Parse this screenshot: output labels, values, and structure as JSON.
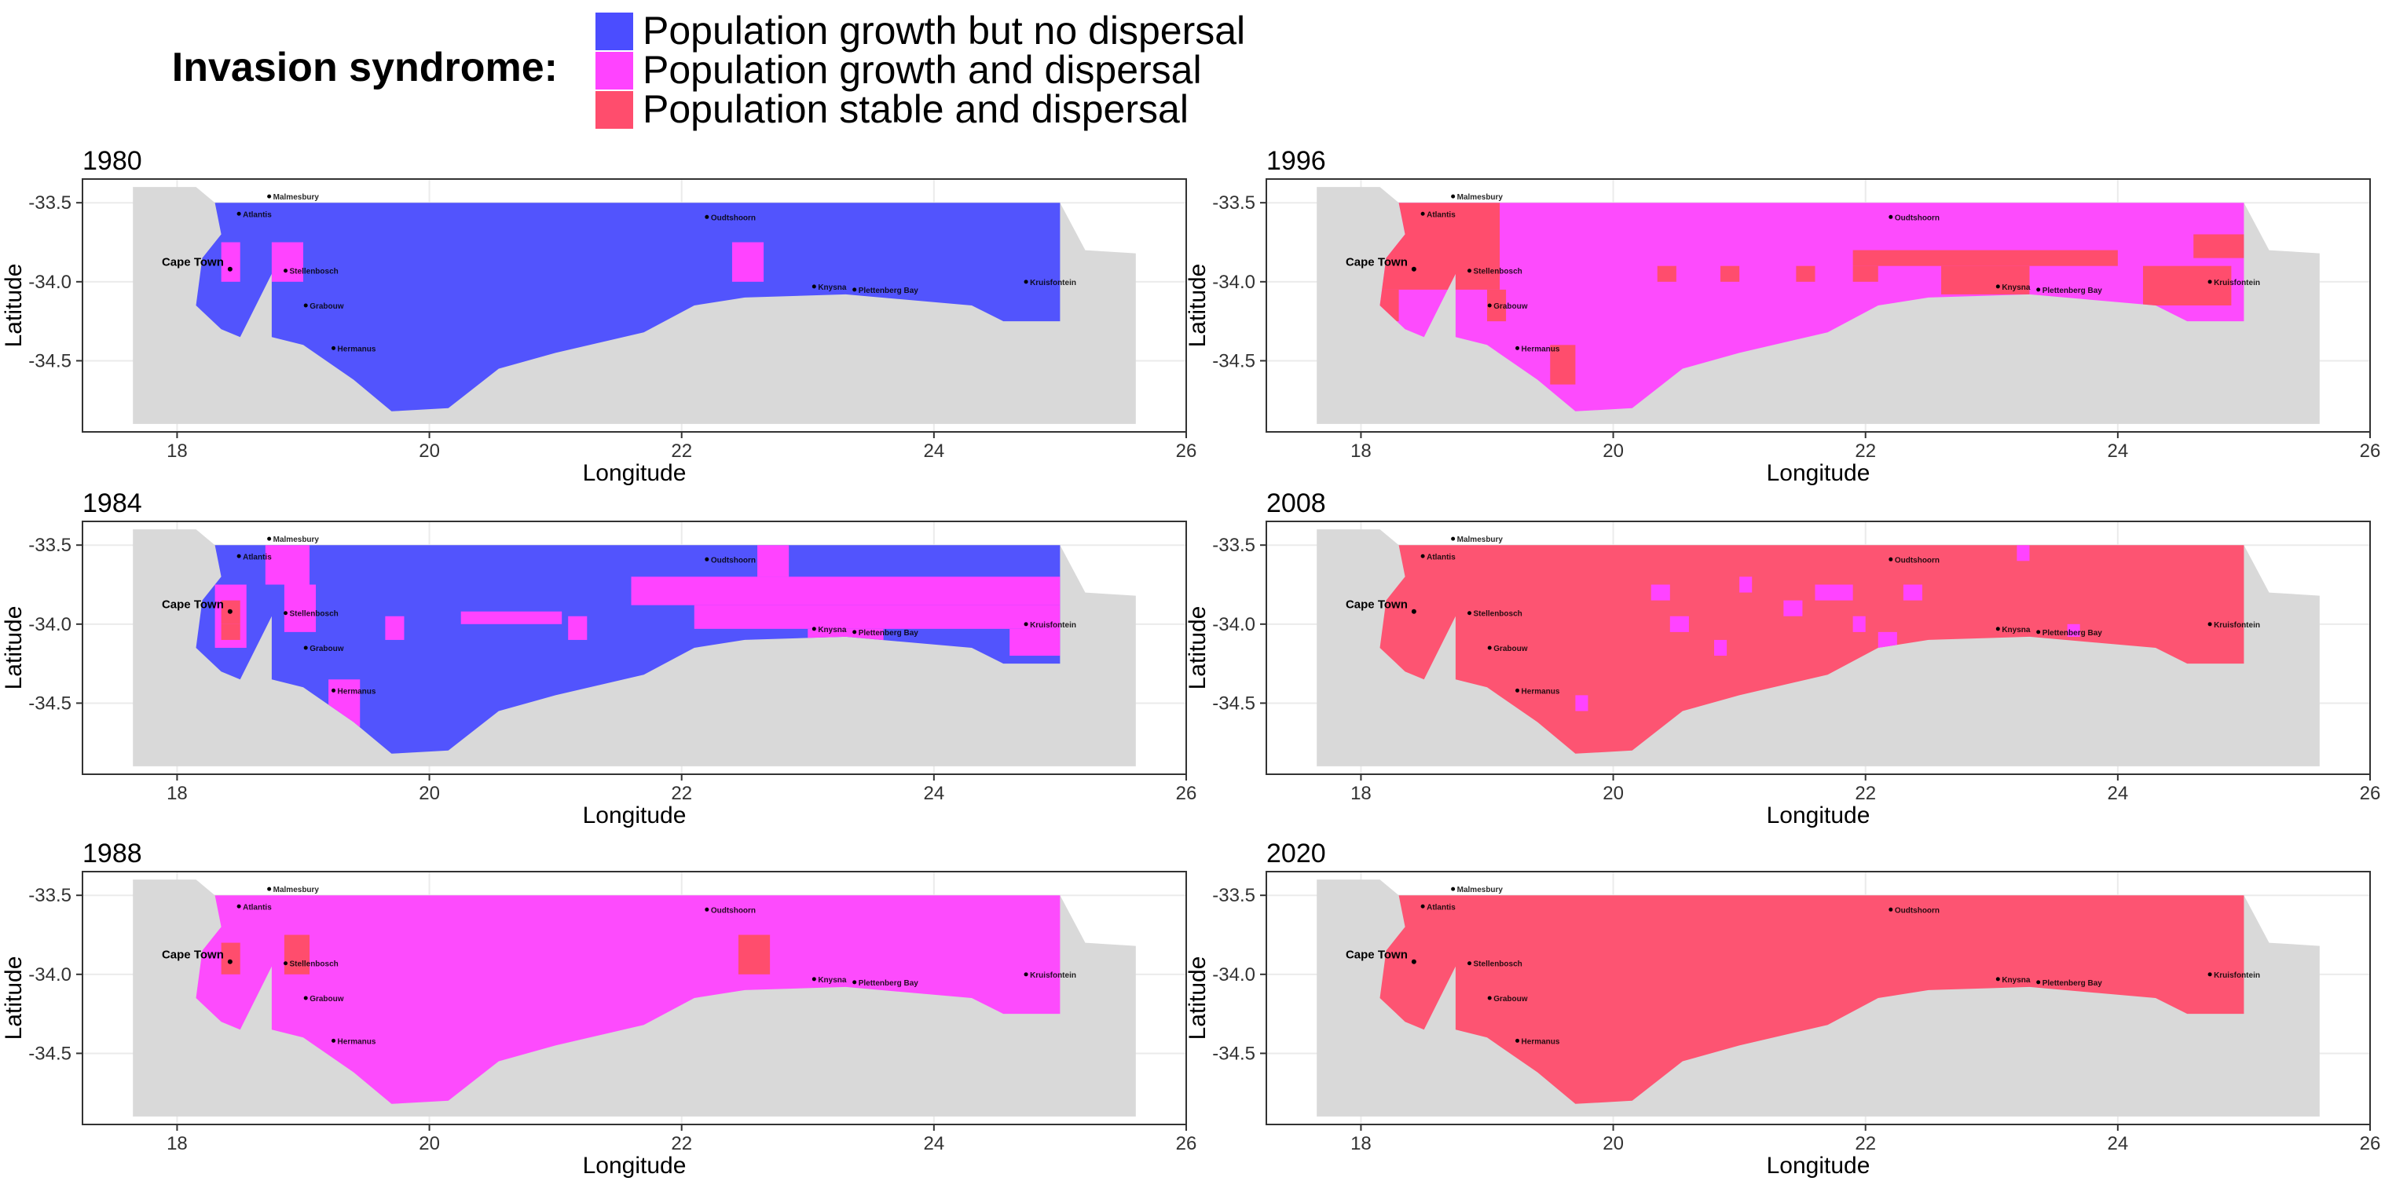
{
  "legend": {
    "title": "Invasion syndrome:",
    "items": [
      {
        "label": "Population growth but no dispersal",
        "color": "#4b4dff",
        "code": "G"
      },
      {
        "label": "Population growth and dispersal",
        "color": "#ff43ff",
        "code": "D"
      },
      {
        "label": "Population stable and dispersal",
        "color": "#ff4d6d",
        "code": "S"
      }
    ]
  },
  "colors": {
    "land": "#d9d9d9",
    "frame": "#333333",
    "grid": "#ebebeb",
    "town_label": "#000000"
  },
  "chart_data": [
    {
      "type": "heatmap",
      "title": "1980",
      "xlabel": "Longitude",
      "ylabel": "Latitude",
      "xlim": [
        17.25,
        26.0
      ],
      "ylim": [
        -34.95,
        -33.35
      ],
      "xticks": [
        18,
        20,
        22,
        24,
        26
      ],
      "yticks": [
        -33.5,
        -34.0,
        -34.5
      ],
      "base": "G",
      "patches": [
        {
          "c": "D",
          "lon": [
            18.35,
            18.5
          ],
          "lat": [
            -33.75,
            -34.0
          ]
        },
        {
          "c": "D",
          "lon": [
            18.75,
            19.0
          ],
          "lat": [
            -33.75,
            -34.0
          ]
        },
        {
          "c": "D",
          "lon": [
            22.4,
            22.65
          ],
          "lat": [
            -33.75,
            -34.0
          ]
        }
      ]
    },
    {
      "type": "heatmap",
      "title": "1996",
      "xlabel": "Longitude",
      "ylabel": "Latitude",
      "xlim": [
        17.25,
        26.0
      ],
      "ylim": [
        -34.95,
        -33.35
      ],
      "xticks": [
        18,
        20,
        22,
        24,
        26
      ],
      "yticks": [
        -33.5,
        -34.0,
        -34.5
      ],
      "base": "D",
      "patches": [
        {
          "c": "S",
          "lon": [
            18.15,
            19.1
          ],
          "lat": [
            -33.5,
            -34.05
          ]
        },
        {
          "c": "S",
          "lon": [
            18.15,
            18.3
          ],
          "lat": [
            -34.05,
            -34.25
          ]
        },
        {
          "c": "S",
          "lon": [
            19.0,
            19.15
          ],
          "lat": [
            -34.05,
            -34.25
          ]
        },
        {
          "c": "S",
          "lon": [
            19.5,
            19.7
          ],
          "lat": [
            -34.4,
            -34.65
          ]
        },
        {
          "c": "S",
          "lon": [
            20.35,
            20.5
          ],
          "lat": [
            -33.9,
            -34.0
          ]
        },
        {
          "c": "S",
          "lon": [
            20.85,
            21.0
          ],
          "lat": [
            -33.9,
            -34.0
          ]
        },
        {
          "c": "S",
          "lon": [
            21.45,
            21.6
          ],
          "lat": [
            -33.9,
            -34.0
          ]
        },
        {
          "c": "S",
          "lon": [
            21.9,
            22.1
          ],
          "lat": [
            -33.9,
            -34.0
          ]
        },
        {
          "c": "S",
          "lon": [
            21.9,
            24.0
          ],
          "lat": [
            -33.8,
            -33.9
          ]
        },
        {
          "c": "S",
          "lon": [
            22.6,
            23.3
          ],
          "lat": [
            -33.9,
            -34.08
          ]
        },
        {
          "c": "S",
          "lon": [
            24.2,
            24.9
          ],
          "lat": [
            -33.9,
            -34.15
          ]
        },
        {
          "c": "S",
          "lon": [
            24.6,
            25.0
          ],
          "lat": [
            -33.7,
            -33.85
          ]
        }
      ]
    },
    {
      "type": "heatmap",
      "title": "1984",
      "xlabel": "Longitude",
      "ylabel": "Latitude",
      "xlim": [
        17.25,
        26.0
      ],
      "ylim": [
        -34.95,
        -33.35
      ],
      "xticks": [
        18,
        20,
        22,
        24,
        26
      ],
      "yticks": [
        -33.5,
        -34.0,
        -34.5
      ],
      "base": "G",
      "patches": [
        {
          "c": "D",
          "lon": [
            18.3,
            18.55
          ],
          "lat": [
            -33.75,
            -34.15
          ]
        },
        {
          "c": "S",
          "lon": [
            18.35,
            18.5
          ],
          "lat": [
            -33.85,
            -34.0
          ]
        },
        {
          "c": "D",
          "lon": [
            18.7,
            19.05
          ],
          "lat": [
            -33.5,
            -33.75
          ]
        },
        {
          "c": "D",
          "lon": [
            18.85,
            19.1
          ],
          "lat": [
            -33.75,
            -34.05
          ]
        },
        {
          "c": "D",
          "lon": [
            19.2,
            19.45
          ],
          "lat": [
            -34.35,
            -34.65
          ]
        },
        {
          "c": "D",
          "lon": [
            19.65,
            19.8
          ],
          "lat": [
            -33.95,
            -34.1
          ]
        },
        {
          "c": "D",
          "lon": [
            20.25,
            21.05
          ],
          "lat": [
            -33.92,
            -34.0
          ]
        },
        {
          "c": "D",
          "lon": [
            21.1,
            21.25
          ],
          "lat": [
            -33.95,
            -34.1
          ]
        },
        {
          "c": "D",
          "lon": [
            21.6,
            25.0
          ],
          "lat": [
            -33.7,
            -33.88
          ]
        },
        {
          "c": "D",
          "lon": [
            22.1,
            25.0
          ],
          "lat": [
            -33.88,
            -34.03
          ]
        },
        {
          "c": "D",
          "lon": [
            22.6,
            22.85
          ],
          "lat": [
            -33.5,
            -33.7
          ]
        },
        {
          "c": "D",
          "lon": [
            23.0,
            23.6
          ],
          "lat": [
            -34.03,
            -34.15
          ]
        },
        {
          "c": "D",
          "lon": [
            24.6,
            25.0
          ],
          "lat": [
            -34.03,
            -34.2
          ]
        },
        {
          "c": "S",
          "lon": [
            18.35,
            18.5
          ],
          "lat": [
            -34.0,
            -34.1
          ]
        }
      ]
    },
    {
      "type": "heatmap",
      "title": "2008",
      "xlabel": "Longitude",
      "ylabel": "Latitude",
      "xlim": [
        17.25,
        26.0
      ],
      "ylim": [
        -34.95,
        -33.35
      ],
      "xticks": [
        18,
        20,
        22,
        24,
        26
      ],
      "yticks": [
        -33.5,
        -34.0,
        -34.5
      ],
      "base": "S",
      "patches": [
        {
          "c": "D",
          "lon": [
            20.3,
            20.45
          ],
          "lat": [
            -33.75,
            -33.85
          ]
        },
        {
          "c": "D",
          "lon": [
            20.45,
            20.6
          ],
          "lat": [
            -33.95,
            -34.05
          ]
        },
        {
          "c": "D",
          "lon": [
            20.8,
            20.9
          ],
          "lat": [
            -34.1,
            -34.2
          ]
        },
        {
          "c": "D",
          "lon": [
            21.0,
            21.1
          ],
          "lat": [
            -33.7,
            -33.8
          ]
        },
        {
          "c": "D",
          "lon": [
            21.35,
            21.5
          ],
          "lat": [
            -33.85,
            -33.95
          ]
        },
        {
          "c": "D",
          "lon": [
            21.6,
            21.9
          ],
          "lat": [
            -33.75,
            -33.85
          ]
        },
        {
          "c": "D",
          "lon": [
            21.9,
            22.0
          ],
          "lat": [
            -33.95,
            -34.05
          ]
        },
        {
          "c": "D",
          "lon": [
            22.3,
            22.45
          ],
          "lat": [
            -33.75,
            -33.85
          ]
        },
        {
          "c": "D",
          "lon": [
            22.1,
            22.25
          ],
          "lat": [
            -34.05,
            -34.15
          ]
        },
        {
          "c": "D",
          "lon": [
            19.7,
            19.8
          ],
          "lat": [
            -34.45,
            -34.55
          ]
        },
        {
          "c": "D",
          "lon": [
            23.2,
            23.3
          ],
          "lat": [
            -33.5,
            -33.6
          ]
        },
        {
          "c": "D",
          "lon": [
            23.6,
            23.7
          ],
          "lat": [
            -34.0,
            -34.08
          ]
        }
      ]
    },
    {
      "type": "heatmap",
      "title": "1988",
      "xlabel": "Longitude",
      "ylabel": "Latitude",
      "xlim": [
        17.25,
        26.0
      ],
      "ylim": [
        -34.95,
        -33.35
      ],
      "xticks": [
        18,
        20,
        22,
        24,
        26
      ],
      "yticks": [
        -33.5,
        -34.0,
        -34.5
      ],
      "base": "D",
      "patches": [
        {
          "c": "S",
          "lon": [
            18.35,
            18.5
          ],
          "lat": [
            -33.8,
            -34.0
          ]
        },
        {
          "c": "S",
          "lon": [
            18.85,
            19.05
          ],
          "lat": [
            -33.75,
            -34.0
          ]
        },
        {
          "c": "S",
          "lon": [
            22.45,
            22.7
          ],
          "lat": [
            -33.75,
            -34.0
          ]
        }
      ]
    },
    {
      "type": "heatmap",
      "title": "2020",
      "xlabel": "Longitude",
      "ylabel": "Latitude",
      "xlim": [
        17.25,
        26.0
      ],
      "ylim": [
        -34.95,
        -33.35
      ],
      "xticks": [
        18,
        20,
        22,
        24,
        26
      ],
      "yticks": [
        -33.5,
        -34.0,
        -34.5
      ],
      "base": "S",
      "patches": []
    }
  ],
  "region": {
    "land_polygon": [
      [
        17.65,
        -33.4
      ],
      [
        18.15,
        -33.4
      ],
      [
        18.3,
        -33.5
      ],
      [
        25.0,
        -33.5
      ],
      [
        25.2,
        -33.8
      ],
      [
        25.6,
        -33.82
      ],
      [
        25.6,
        -34.9
      ],
      [
        17.65,
        -34.9
      ]
    ],
    "study_polygon": [
      [
        18.3,
        -33.5
      ],
      [
        25.0,
        -33.5
      ],
      [
        25.0,
        -34.25
      ],
      [
        24.55,
        -34.25
      ],
      [
        24.3,
        -34.15
      ],
      [
        23.3,
        -34.08
      ],
      [
        22.5,
        -34.1
      ],
      [
        22.1,
        -34.15
      ],
      [
        21.7,
        -34.32
      ],
      [
        21.0,
        -34.45
      ],
      [
        20.55,
        -34.55
      ],
      [
        20.15,
        -34.8
      ],
      [
        19.7,
        -34.82
      ],
      [
        19.4,
        -34.62
      ],
      [
        19.0,
        -34.4
      ],
      [
        18.75,
        -34.35
      ],
      [
        18.75,
        -33.95
      ],
      [
        18.5,
        -34.35
      ],
      [
        18.35,
        -34.3
      ],
      [
        18.15,
        -34.15
      ],
      [
        18.2,
        -33.85
      ],
      [
        18.35,
        -33.7
      ]
    ]
  },
  "towns": [
    {
      "name": "Malmesbury",
      "lon": 18.73,
      "lat": -33.46,
      "large": false
    },
    {
      "name": "Atlantis",
      "lon": 18.49,
      "lat": -33.57,
      "large": false
    },
    {
      "name": "Cape Town",
      "lon": 18.42,
      "lat": -33.92,
      "large": true
    },
    {
      "name": "Stellenbosch",
      "lon": 18.86,
      "lat": -33.93,
      "large": false
    },
    {
      "name": "Grabouw",
      "lon": 19.02,
      "lat": -34.15,
      "large": false
    },
    {
      "name": "Hermanus",
      "lon": 19.24,
      "lat": -34.42,
      "large": false
    },
    {
      "name": "Oudtshoorn",
      "lon": 22.2,
      "lat": -33.59,
      "large": false
    },
    {
      "name": "Knysna",
      "lon": 23.05,
      "lat": -34.03,
      "large": false
    },
    {
      "name": "Plettenberg Bay",
      "lon": 23.37,
      "lat": -34.05,
      "large": false
    },
    {
      "name": "Kruisfontein",
      "lon": 24.73,
      "lat": -34.0,
      "large": false
    }
  ]
}
